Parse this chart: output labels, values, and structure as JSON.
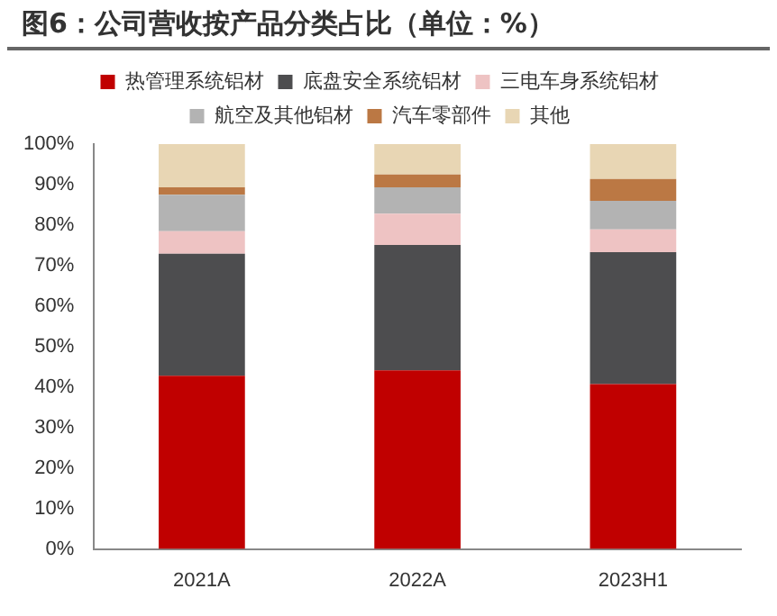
{
  "chart_data": {
    "type": "bar",
    "title": "图6：公司营收按产品分类占比（单位：%）",
    "stacked": true,
    "legend": "top",
    "categories": [
      "2021A",
      "2022A",
      "2023H1"
    ],
    "series": [
      {
        "name": "热管理系统铝材",
        "color": "#c00000",
        "values": [
          42.8,
          44.1,
          40.7
        ]
      },
      {
        "name": "底盘安全系统铝材",
        "color": "#4d4d4f",
        "values": [
          30.1,
          31,
          32.6
        ]
      },
      {
        "name": "三电车身系统铝材",
        "color": "#eec3c3",
        "values": [
          5.6,
          7.7,
          5.6
        ]
      },
      {
        "name": "航空及其他铝材",
        "color": "#b3b3b3",
        "values": [
          9,
          6.5,
          7.1
        ]
      },
      {
        "name": "汽车零部件",
        "color": "#bb7844",
        "values": [
          1.8,
          3.2,
          5.4
        ]
      },
      {
        "name": "其他",
        "color": "#e8d6b4",
        "values": [
          10.7,
          7.5,
          8.6
        ]
      }
    ],
    "ylim": [
      0,
      100
    ],
    "yticks": [
      {
        "value": 0,
        "label": "0%"
      },
      {
        "value": 10,
        "label": "10%"
      },
      {
        "value": 20,
        "label": "20%"
      },
      {
        "value": 30,
        "label": "30%"
      },
      {
        "value": 40,
        "label": "40%"
      },
      {
        "value": 50,
        "label": "50%"
      },
      {
        "value": 60,
        "label": "60%"
      },
      {
        "value": 70,
        "label": "70%"
      },
      {
        "value": 80,
        "label": "80%"
      },
      {
        "value": 90,
        "label": "90%"
      },
      {
        "value": 100,
        "label": "100%"
      }
    ]
  }
}
